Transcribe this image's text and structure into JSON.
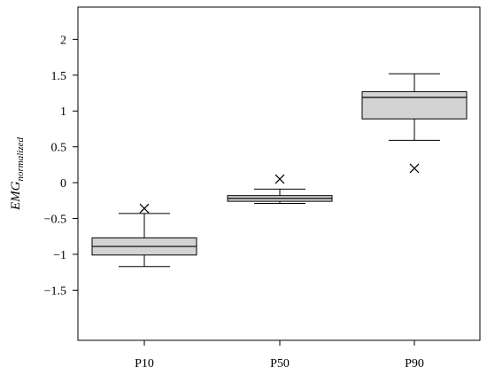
{
  "chart_data": {
    "type": "boxplot",
    "title": "",
    "xlabel": "",
    "ylabel": {
      "main": "EMG",
      "subscript": "normalized"
    },
    "ylim": [
      -2.2,
      2.45
    ],
    "yticks": [
      -1.5,
      -1,
      -0.5,
      0,
      0.5,
      1,
      1.5,
      2
    ],
    "ytick_labels": [
      "−1.5",
      "−1",
      "−0.5",
      "0",
      "0.5",
      "1",
      "1.5",
      "2"
    ],
    "categories": [
      "P10",
      "P50",
      "P90"
    ],
    "boxes": [
      {
        "category": "P10",
        "whisker_low": -1.17,
        "q1": -1.01,
        "median": -0.89,
        "q3": -0.77,
        "whisker_high": -0.43,
        "outliers": [
          -0.36
        ]
      },
      {
        "category": "P50",
        "whisker_low": -0.29,
        "q1": -0.26,
        "median": -0.22,
        "q3": -0.18,
        "whisker_high": -0.09,
        "outliers": [
          0.05
        ]
      },
      {
        "category": "P90",
        "whisker_low": 0.59,
        "q1": 0.89,
        "median": 1.19,
        "q3": 1.27,
        "whisker_high": 1.52,
        "outliers": [
          0.2
        ]
      }
    ],
    "box_fill": "#d3d3d3",
    "line_color": "#000000",
    "grid": false,
    "outlier_marker": "x"
  }
}
